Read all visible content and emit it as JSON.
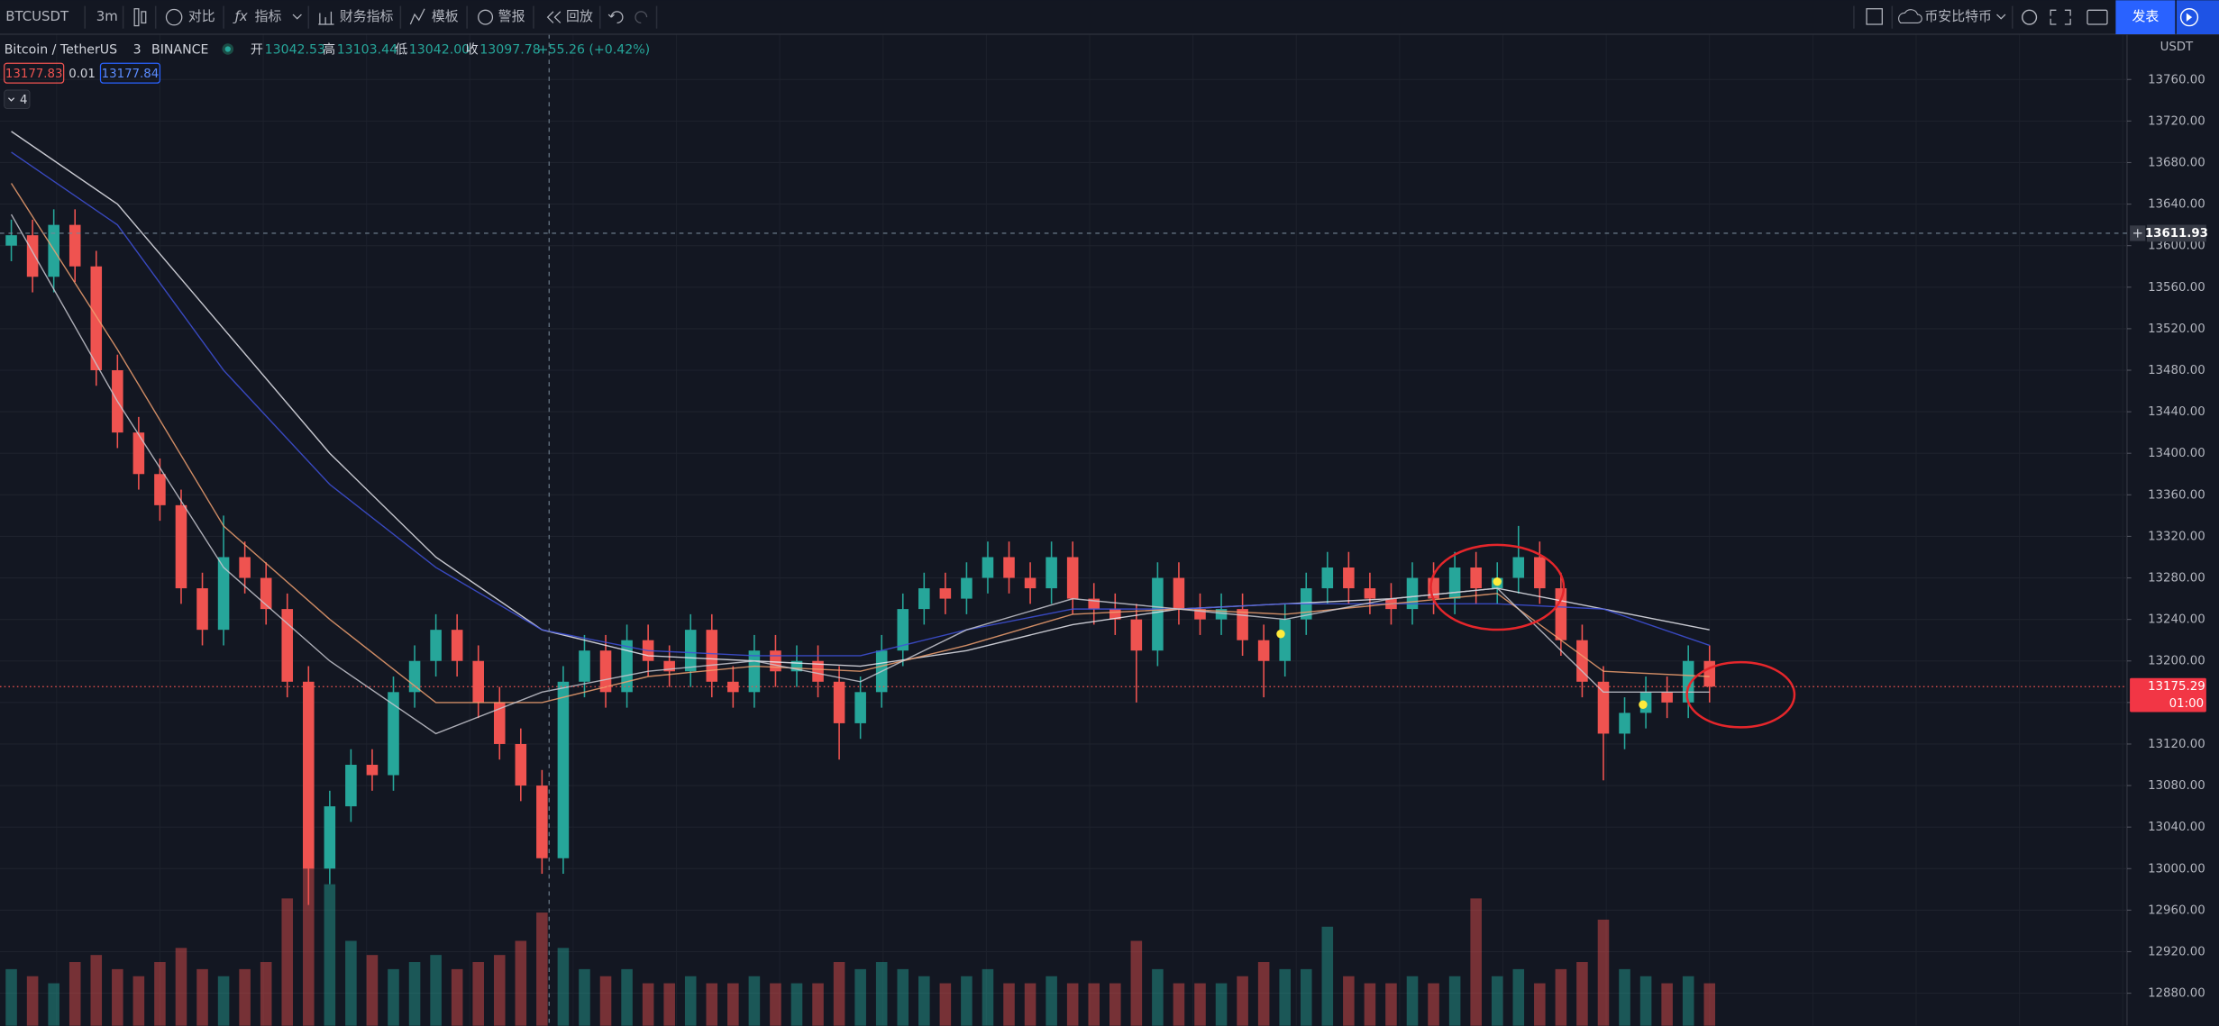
{
  "toolbar": {
    "symbol": "BTCUSDT",
    "interval": "3m",
    "compare": "对比",
    "indicators": "指标",
    "financials": "财务指标",
    "templates": "模板",
    "alerts": "警报",
    "replay": "回放",
    "datafeed": "币安比特币",
    "publish": "发表"
  },
  "chart_data": {
    "type": "candlestick",
    "title": "Bitcoin / TetherUS",
    "interval": "3",
    "exchange": "BINANCE",
    "legend": {
      "open_label": "开",
      "open": "13042.53",
      "high_label": "高",
      "high": "13103.44",
      "low_label": "低",
      "low": "13042.00",
      "close_label": "收",
      "close": "13097.78",
      "change": "+55.26 (+0.42%)"
    },
    "bid": 13177.83,
    "spread": 0.01,
    "ask": 13177.84,
    "indicator_count": "4",
    "currency": "USDT",
    "crosshair_price": 13611.93,
    "last_price": 13175.29,
    "countdown": "01:00",
    "up_color": "#26a69a",
    "down_color": "#ef5350",
    "open": [
      13600,
      13610,
      13570,
      13620,
      13580,
      13480,
      13420,
      13380,
      13350,
      13270,
      13230,
      13300,
      13280,
      13250,
      13180,
      13000,
      13060,
      13100,
      13090,
      13170,
      13200,
      13230,
      13200,
      13160,
      13120,
      13080,
      13010,
      13180,
      13210,
      13170,
      13220,
      13200,
      13190,
      13230,
      13180,
      13170,
      13210,
      13190,
      13200,
      13180,
      13140,
      13170,
      13210,
      13250,
      13270,
      13260,
      13280,
      13300,
      13280,
      13270,
      13300,
      13260,
      13250,
      13240,
      13210,
      13280,
      13250,
      13240,
      13250,
      13220,
      13200,
      13240,
      13270,
      13290,
      13270,
      13260,
      13250,
      13280,
      13260,
      13290,
      13270,
      13280,
      13300,
      13270,
      13220,
      13180,
      13130,
      13150,
      13170,
      13160,
      13200
    ],
    "high": [
      13625,
      13625,
      13635,
      13635,
      13595,
      13495,
      13435,
      13395,
      13365,
      13285,
      13340,
      13315,
      13295,
      13265,
      13195,
      13075,
      13115,
      13115,
      13185,
      13215,
      13245,
      13245,
      13215,
      13175,
      13135,
      13095,
      13195,
      13225,
      13225,
      13235,
      13235,
      13215,
      13245,
      13245,
      13195,
      13225,
      13225,
      13215,
      13215,
      13195,
      13185,
      13225,
      13265,
      13285,
      13285,
      13295,
      13315,
      13315,
      13295,
      13315,
      13315,
      13275,
      13265,
      13255,
      13295,
      13295,
      13265,
      13265,
      13265,
      13235,
      13255,
      13285,
      13305,
      13305,
      13285,
      13275,
      13295,
      13295,
      13305,
      13305,
      13295,
      13330,
      13315,
      13285,
      13235,
      13195,
      13165,
      13185,
      13185,
      13215,
      13215
    ],
    "low": [
      13585,
      13555,
      13555,
      13565,
      13465,
      13405,
      13365,
      13335,
      13255,
      13215,
      13215,
      13265,
      13235,
      13165,
      12965,
      12985,
      13045,
      13075,
      13075,
      13155,
      13185,
      13185,
      13145,
      13105,
      13065,
      12995,
      12995,
      13165,
      13155,
      13155,
      13185,
      13175,
      13175,
      13165,
      13155,
      13155,
      13175,
      13175,
      13165,
      13105,
      13125,
      13155,
      13195,
      13235,
      13245,
      13245,
      13265,
      13265,
      13255,
      13255,
      13245,
      13235,
      13225,
      13160,
      13195,
      13235,
      13225,
      13225,
      13205,
      13165,
      13185,
      13225,
      13255,
      13255,
      13245,
      13235,
      13235,
      13245,
      13245,
      13255,
      13255,
      13265,
      13255,
      13205,
      13165,
      13085,
      13115,
      13135,
      13145,
      13145,
      13160
    ],
    "close": [
      13610,
      13570,
      13620,
      13580,
      13480,
      13420,
      13380,
      13350,
      13270,
      13230,
      13300,
      13280,
      13250,
      13180,
      13000,
      13060,
      13100,
      13090,
      13170,
      13200,
      13230,
      13200,
      13160,
      13120,
      13080,
      13010,
      13180,
      13210,
      13170,
      13220,
      13200,
      13190,
      13230,
      13180,
      13170,
      13210,
      13190,
      13200,
      13180,
      13140,
      13170,
      13210,
      13250,
      13270,
      13260,
      13280,
      13300,
      13280,
      13270,
      13300,
      13260,
      13250,
      13240,
      13210,
      13280,
      13250,
      13240,
      13250,
      13220,
      13200,
      13240,
      13270,
      13290,
      13270,
      13260,
      13250,
      13280,
      13260,
      13290,
      13270,
      13280,
      13300,
      13270,
      13220,
      13180,
      13130,
      13150,
      13170,
      13160,
      13200,
      13175.29
    ],
    "volume": [
      40,
      35,
      30,
      45,
      50,
      40,
      35,
      45,
      55,
      40,
      35,
      40,
      45,
      90,
      140,
      100,
      60,
      50,
      40,
      45,
      50,
      40,
      45,
      50,
      60,
      80,
      55,
      40,
      35,
      40,
      30,
      30,
      35,
      30,
      30,
      35,
      30,
      30,
      30,
      45,
      40,
      45,
      40,
      35,
      30,
      35,
      40,
      30,
      30,
      35,
      30,
      30,
      30,
      60,
      40,
      30,
      30,
      30,
      35,
      45,
      40,
      40,
      70,
      35,
      30,
      30,
      35,
      30,
      35,
      90,
      35,
      40,
      30,
      40,
      45,
      75,
      40,
      35,
      30,
      35,
      30
    ],
    "overlays": [
      {
        "color": "#e8e8ee",
        "values": [
          13710,
          13640,
          13520,
          13400,
          13300,
          13230,
          13205,
          13200,
          13195,
          13210,
          13235,
          13250,
          13255,
          13260,
          13270,
          13250,
          13230
        ]
      },
      {
        "color": "#3f51d9",
        "values": [
          13690,
          13620,
          13480,
          13370,
          13290,
          13230,
          13210,
          13205,
          13205,
          13230,
          13250,
          13250,
          13255,
          13255,
          13255,
          13250,
          13215
        ]
      },
      {
        "color": "#f0a070",
        "values": [
          13660,
          13500,
          13330,
          13240,
          13160,
          13160,
          13185,
          13195,
          13190,
          13215,
          13245,
          13250,
          13245,
          13255,
          13265,
          13190,
          13185
        ]
      },
      {
        "color": "#c8c8d0",
        "values": [
          13630,
          13450,
          13290,
          13200,
          13130,
          13170,
          13190,
          13200,
          13180,
          13230,
          13260,
          13250,
          13240,
          13260,
          13270,
          13170,
          13170
        ]
      }
    ],
    "ylim": [
      12848.7,
      13803.6
    ],
    "yticks": [
      {
        "value": 13760,
        "label": "13760.00"
      },
      {
        "value": 13720,
        "label": "13720.00"
      },
      {
        "value": 13680,
        "label": "13680.00"
      },
      {
        "value": 13640,
        "label": "13640.00"
      },
      {
        "value": 13600,
        "label": "13600.00"
      },
      {
        "value": 13560,
        "label": "13560.00"
      },
      {
        "value": 13520,
        "label": "13520.00"
      },
      {
        "value": 13480,
        "label": "13480.00"
      },
      {
        "value": 13440,
        "label": "13440.00"
      },
      {
        "value": 13400,
        "label": "13400.00"
      },
      {
        "value": 13360,
        "label": "13360.00"
      },
      {
        "value": 13320,
        "label": "13320.00"
      },
      {
        "value": 13280,
        "label": "13280.00"
      },
      {
        "value": 13240,
        "label": "13240.00"
      },
      {
        "value": 13200,
        "label": "13200.00"
      },
      {
        "value": 13160,
        "label": "13160.00"
      },
      {
        "value": 13120,
        "label": "13120.00"
      },
      {
        "value": 13080,
        "label": "13080.00"
      },
      {
        "value": 13040,
        "label": "13040.00"
      },
      {
        "value": 13000,
        "label": "13000.00"
      },
      {
        "value": 12960,
        "label": "12960.00"
      },
      {
        "value": 12920,
        "label": "12920.00"
      },
      {
        "value": 12880,
        "label": "12880.00"
      }
    ],
    "grid": true
  }
}
